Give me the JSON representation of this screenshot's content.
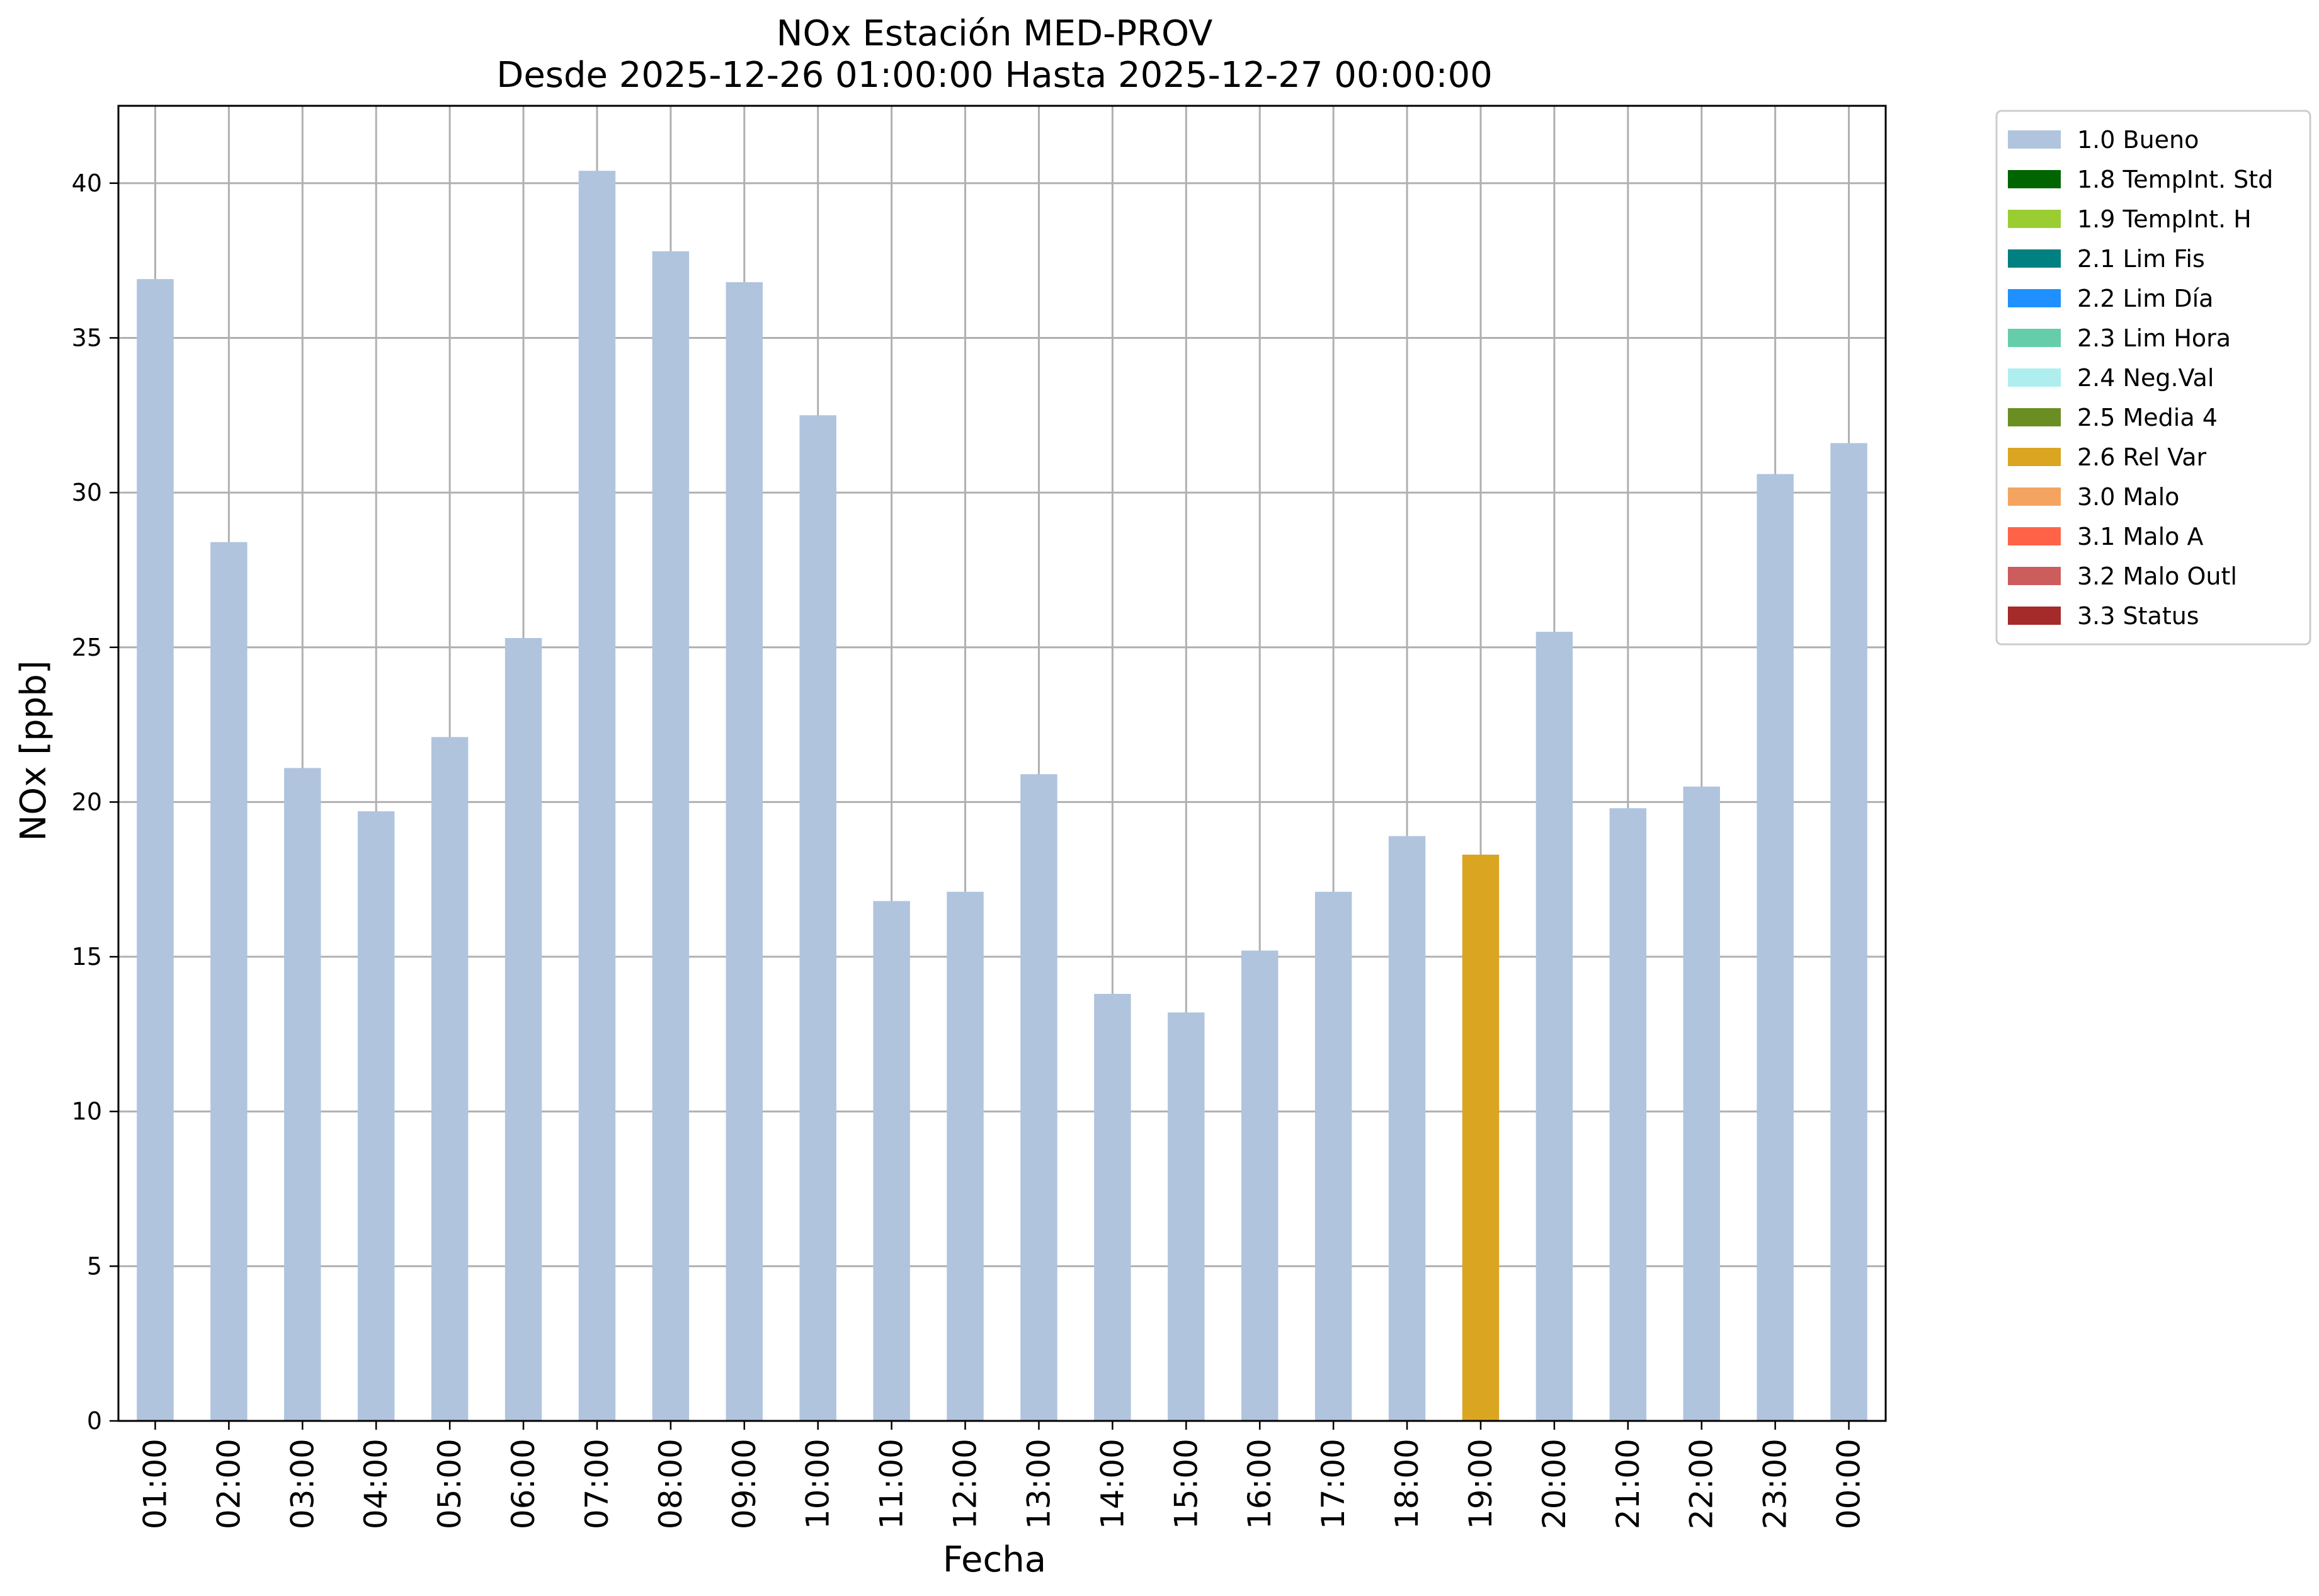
{
  "chart_data": {
    "type": "bar",
    "title": "NOx Estación MED-PROV",
    "subtitle": "Desde 2025-12-26 01:00:00 Hasta 2025-12-27 00:00:00",
    "xlabel": "Fecha",
    "ylabel": "NOx [ppb]",
    "ylim": [
      0,
      42.5
    ],
    "yticks": [
      0,
      5,
      10,
      15,
      20,
      25,
      30,
      35,
      40
    ],
    "grid": true,
    "legend_position": "outside-top-right",
    "categories": [
      "01:00",
      "02:00",
      "03:00",
      "04:00",
      "05:00",
      "06:00",
      "07:00",
      "08:00",
      "09:00",
      "10:00",
      "11:00",
      "12:00",
      "13:00",
      "14:00",
      "15:00",
      "16:00",
      "17:00",
      "18:00",
      "19:00",
      "20:00",
      "21:00",
      "22:00",
      "23:00",
      "00:00"
    ],
    "values": [
      36.9,
      28.4,
      21.1,
      19.7,
      22.1,
      25.3,
      40.4,
      37.8,
      36.8,
      32.5,
      16.8,
      17.1,
      20.9,
      13.8,
      13.2,
      15.2,
      17.1,
      18.9,
      18.3,
      25.5,
      19.8,
      20.5,
      30.6,
      31.6
    ],
    "bar_quality": [
      "1.0 Bueno",
      "1.0 Bueno",
      "1.0 Bueno",
      "1.0 Bueno",
      "1.0 Bueno",
      "1.0 Bueno",
      "1.0 Bueno",
      "1.0 Bueno",
      "1.0 Bueno",
      "1.0 Bueno",
      "1.0 Bueno",
      "1.0 Bueno",
      "1.0 Bueno",
      "1.0 Bueno",
      "1.0 Bueno",
      "1.0 Bueno",
      "1.0 Bueno",
      "1.0 Bueno",
      "2.6 Rel Var",
      "1.0 Bueno",
      "1.0 Bueno",
      "1.0 Bueno",
      "1.0 Bueno",
      "1.0 Bueno"
    ],
    "legend": [
      {
        "label": "1.0 Bueno",
        "color": "#b0c4de"
      },
      {
        "label": "1.8 TempInt. Std",
        "color": "#006400"
      },
      {
        "label": "1.9 TempInt. H",
        "color": "#9acd32"
      },
      {
        "label": "2.1 Lim Fis",
        "color": "#008080"
      },
      {
        "label": "2.2 Lim Día",
        "color": "#1e90ff"
      },
      {
        "label": "2.3 Lim Hora",
        "color": "#66cdaa"
      },
      {
        "label": "2.4 Neg.Val",
        "color": "#afeeee"
      },
      {
        "label": "2.5 Media 4",
        "color": "#6b8e23"
      },
      {
        "label": "2.6 Rel Var",
        "color": "#daa520"
      },
      {
        "label": "3.0 Malo",
        "color": "#f4a460"
      },
      {
        "label": "3.1 Malo A",
        "color": "#ff6347"
      },
      {
        "label": "3.2 Malo Outl",
        "color": "#cd5c5c"
      },
      {
        "label": "3.3 Status",
        "color": "#a52a2a"
      }
    ]
  }
}
